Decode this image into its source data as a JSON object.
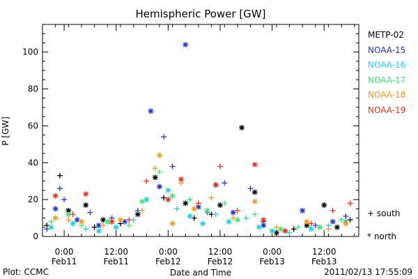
{
  "chart_data": {
    "type": "scatter",
    "title": "Hemispheric Power [GW]",
    "xlabel": "Date and Time",
    "ylabel": "P [GW]",
    "ylim": [
      0,
      115
    ],
    "y_ticks": [
      0,
      20,
      40,
      60,
      80,
      100
    ],
    "xlim": [
      "2011-02-10T19:00",
      "2011-02-13T20:00"
    ],
    "x_ticks": [
      {
        "x": "2011-02-11T00:00",
        "label_time": "0:00",
        "label_date": "Feb11"
      },
      {
        "x": "2011-02-11T12:00",
        "label_time": "12:00",
        "label_date": "Feb11"
      },
      {
        "x": "2011-02-12T00:00",
        "label_time": "0:00",
        "label_date": "Feb12"
      },
      {
        "x": "2011-02-12T12:00",
        "label_time": "12:00",
        "label_date": "Feb12"
      },
      {
        "x": "2011-02-13T00:00",
        "label_time": "0:00",
        "label_date": "Feb13"
      },
      {
        "x": "2011-02-13T12:00",
        "label_time": "12:00",
        "label_date": "Feb13"
      }
    ],
    "grid": false,
    "legend_position": "right",
    "marker_legend": [
      {
        "symbol": "+",
        "label": "south"
      },
      {
        "symbol": "*",
        "label": "north"
      }
    ],
    "series": [
      {
        "name": "METP-02",
        "color": "#000000",
        "points": [
          {
            "x": "2011-02-10T20:00",
            "y": 6,
            "m": "+"
          },
          {
            "x": "2011-02-10T23:00",
            "y": 33,
            "m": "+"
          },
          {
            "x": "2011-02-11T01:00",
            "y": 14,
            "m": "*"
          },
          {
            "x": "2011-02-11T05:00",
            "y": 17,
            "m": "*"
          },
          {
            "x": "2011-02-11T07:00",
            "y": 5,
            "m": "+"
          },
          {
            "x": "2011-02-11T09:00",
            "y": 9,
            "m": "*"
          },
          {
            "x": "2011-02-11T13:00",
            "y": 7,
            "m": "+"
          },
          {
            "x": "2011-02-11T17:00",
            "y": 12,
            "m": "*"
          },
          {
            "x": "2011-02-11T21:00",
            "y": 32,
            "m": "*"
          },
          {
            "x": "2011-02-11T23:00",
            "y": 21,
            "m": "+"
          },
          {
            "x": "2011-02-12T04:00",
            "y": 18,
            "m": "*"
          },
          {
            "x": "2011-02-12T06:00",
            "y": 10,
            "m": "+"
          },
          {
            "x": "2011-02-12T10:00",
            "y": 12,
            "m": "+"
          },
          {
            "x": "2011-02-12T12:00",
            "y": 17,
            "m": "*"
          },
          {
            "x": "2011-02-12T17:00",
            "y": 59,
            "m": "*"
          },
          {
            "x": "2011-02-12T20:00",
            "y": 24,
            "m": "*"
          },
          {
            "x": "2011-02-12T22:00",
            "y": 8,
            "m": "+"
          },
          {
            "x": "2011-02-13T01:00",
            "y": 2,
            "m": "*"
          },
          {
            "x": "2011-02-13T05:00",
            "y": 4,
            "m": "+"
          },
          {
            "x": "2011-02-13T08:00",
            "y": 6,
            "m": "*"
          },
          {
            "x": "2011-02-13T12:00",
            "y": 17,
            "m": "*"
          },
          {
            "x": "2011-02-13T15:00",
            "y": 5,
            "m": "*"
          },
          {
            "x": "2011-02-13T18:00",
            "y": 9,
            "m": "+"
          }
        ]
      },
      {
        "name": "NOAA-15",
        "color": "#2233cc",
        "points": [
          {
            "x": "2011-02-10T20:00",
            "y": 4,
            "m": "+"
          },
          {
            "x": "2011-02-10T22:00",
            "y": 15,
            "m": "*"
          },
          {
            "x": "2011-02-10T23:00",
            "y": 26,
            "m": "+"
          },
          {
            "x": "2011-02-11T00:00",
            "y": 20,
            "m": "+"
          },
          {
            "x": "2011-02-11T03:00",
            "y": 9,
            "m": "*"
          },
          {
            "x": "2011-02-11T06:00",
            "y": 13,
            "m": "+"
          },
          {
            "x": "2011-02-11T08:00",
            "y": 6,
            "m": "*"
          },
          {
            "x": "2011-02-11T11:00",
            "y": 10,
            "m": "+"
          },
          {
            "x": "2011-02-11T14:00",
            "y": 8,
            "m": "*"
          },
          {
            "x": "2011-02-11T17:00",
            "y": 14,
            "m": "+"
          },
          {
            "x": "2011-02-11T20:00",
            "y": 68,
            "m": "*"
          },
          {
            "x": "2011-02-11T22:00",
            "y": 27,
            "m": "*"
          },
          {
            "x": "2011-02-11T23:00",
            "y": 54,
            "m": "+"
          },
          {
            "x": "2011-02-12T01:00",
            "y": 38,
            "m": "+"
          },
          {
            "x": "2011-02-12T04:00",
            "y": 104,
            "m": "*"
          },
          {
            "x": "2011-02-12T07:00",
            "y": 16,
            "m": "*"
          },
          {
            "x": "2011-02-12T09:00",
            "y": 13,
            "m": "+"
          },
          {
            "x": "2011-02-12T11:00",
            "y": 28,
            "m": "*"
          },
          {
            "x": "2011-02-12T13:00",
            "y": 29,
            "m": "+"
          },
          {
            "x": "2011-02-12T15:00",
            "y": 13,
            "m": "*"
          },
          {
            "x": "2011-02-12T19:00",
            "y": 26,
            "m": "+"
          },
          {
            "x": "2011-02-12T22:00",
            "y": 6,
            "m": "*"
          },
          {
            "x": "2011-02-13T03:00",
            "y": 3,
            "m": "+"
          },
          {
            "x": "2011-02-13T07:00",
            "y": 14,
            "m": "*"
          },
          {
            "x": "2011-02-13T10:00",
            "y": 6,
            "m": "+"
          },
          {
            "x": "2011-02-13T14:00",
            "y": 8,
            "m": "*"
          },
          {
            "x": "2011-02-13T17:00",
            "y": 11,
            "m": "+"
          }
        ]
      },
      {
        "name": "NOAA-16",
        "color": "#22ccdd",
        "points": [
          {
            "x": "2011-02-10T21:00",
            "y": 5,
            "m": "*"
          },
          {
            "x": "2011-02-11T02:00",
            "y": 7,
            "m": "*"
          },
          {
            "x": "2011-02-11T05:00",
            "y": 4,
            "m": "+"
          },
          {
            "x": "2011-02-11T08:00",
            "y": 3,
            "m": "*"
          },
          {
            "x": "2011-02-11T12:00",
            "y": 5,
            "m": "*"
          },
          {
            "x": "2011-02-11T16:00",
            "y": 9,
            "m": "+"
          },
          {
            "x": "2011-02-11T19:00",
            "y": 20,
            "m": "*"
          },
          {
            "x": "2011-02-12T00:00",
            "y": 25,
            "m": "*"
          },
          {
            "x": "2011-02-12T02:00",
            "y": 15,
            "m": "+"
          },
          {
            "x": "2011-02-12T05:00",
            "y": 11,
            "m": "*"
          },
          {
            "x": "2011-02-12T08:00",
            "y": 7,
            "m": "*"
          },
          {
            "x": "2011-02-12T11:00",
            "y": 12,
            "m": "+"
          },
          {
            "x": "2011-02-12T14:00",
            "y": 8,
            "m": "*"
          },
          {
            "x": "2011-02-12T18:00",
            "y": 10,
            "m": "+"
          },
          {
            "x": "2011-02-12T21:00",
            "y": 5,
            "m": "*"
          },
          {
            "x": "2011-02-13T00:00",
            "y": 3,
            "m": "*"
          },
          {
            "x": "2011-02-13T04:00",
            "y": 2,
            "m": "+"
          },
          {
            "x": "2011-02-13T09:00",
            "y": 4,
            "m": "*"
          },
          {
            "x": "2011-02-13T13:00",
            "y": 6,
            "m": "+"
          },
          {
            "x": "2011-02-13T17:00",
            "y": 8,
            "m": "*"
          }
        ]
      },
      {
        "name": "NOAA-17",
        "color": "#44dd77",
        "points": [
          {
            "x": "2011-02-10T21:00",
            "y": 8,
            "m": "+"
          },
          {
            "x": "2011-02-11T01:00",
            "y": 12,
            "m": "*"
          },
          {
            "x": "2011-02-11T04:00",
            "y": 6,
            "m": "+"
          },
          {
            "x": "2011-02-11T10:00",
            "y": 8,
            "m": "*"
          },
          {
            "x": "2011-02-11T15:00",
            "y": 6,
            "m": "+"
          },
          {
            "x": "2011-02-11T18:00",
            "y": 19,
            "m": "*"
          },
          {
            "x": "2011-02-11T22:00",
            "y": 35,
            "m": "+"
          },
          {
            "x": "2011-02-12T01:00",
            "y": 22,
            "m": "*"
          },
          {
            "x": "2011-02-12T05:00",
            "y": 20,
            "m": "+"
          },
          {
            "x": "2011-02-12T09:00",
            "y": 14,
            "m": "*"
          },
          {
            "x": "2011-02-12T13:00",
            "y": 18,
            "m": "+"
          },
          {
            "x": "2011-02-12T16:00",
            "y": 9,
            "m": "*"
          },
          {
            "x": "2011-02-12T20:00",
            "y": 12,
            "m": "+"
          },
          {
            "x": "2011-02-13T02:00",
            "y": 4,
            "m": "*"
          },
          {
            "x": "2011-02-13T06:00",
            "y": 5,
            "m": "+"
          },
          {
            "x": "2011-02-13T11:00",
            "y": 5,
            "m": "*"
          },
          {
            "x": "2011-02-13T16:00",
            "y": 9,
            "m": "+"
          }
        ]
      },
      {
        "name": "NOAA-18",
        "color": "#ee9922",
        "points": [
          {
            "x": "2011-02-10T22:00",
            "y": 10,
            "m": "*"
          },
          {
            "x": "2011-02-11T01:00",
            "y": 9,
            "m": "+"
          },
          {
            "x": "2011-02-11T04:00",
            "y": 8,
            "m": "*"
          },
          {
            "x": "2011-02-11T09:00",
            "y": 6,
            "m": "+"
          },
          {
            "x": "2011-02-11T13:00",
            "y": 9,
            "m": "*"
          },
          {
            "x": "2011-02-11T18:00",
            "y": 14,
            "m": "+"
          },
          {
            "x": "2011-02-11T21:00",
            "y": 37,
            "m": "+"
          },
          {
            "x": "2011-02-11T22:00",
            "y": 44,
            "m": "*"
          },
          {
            "x": "2011-02-12T01:00",
            "y": 7,
            "m": "*"
          },
          {
            "x": "2011-02-12T03:00",
            "y": 29,
            "m": "+"
          },
          {
            "x": "2011-02-12T06:00",
            "y": 15,
            "m": "*"
          },
          {
            "x": "2011-02-12T10:00",
            "y": 21,
            "m": "+"
          },
          {
            "x": "2011-02-12T15:00",
            "y": 10,
            "m": "+"
          },
          {
            "x": "2011-02-12T20:00",
            "y": 19,
            "m": "*"
          },
          {
            "x": "2011-02-13T01:00",
            "y": 5,
            "m": "+"
          },
          {
            "x": "2011-02-13T08:00",
            "y": 8,
            "m": "*"
          },
          {
            "x": "2011-02-13T13:00",
            "y": 4,
            "m": "+"
          },
          {
            "x": "2011-02-13T17:00",
            "y": 7,
            "m": "*"
          }
        ]
      },
      {
        "name": "NOAA-19",
        "color": "#dd3322",
        "points": [
          {
            "x": "2011-02-10T22:00",
            "y": 22,
            "m": "*"
          },
          {
            "x": "2011-02-11T02:00",
            "y": 12,
            "m": "+"
          },
          {
            "x": "2011-02-11T05:00",
            "y": 23,
            "m": "*"
          },
          {
            "x": "2011-02-11T11:00",
            "y": 8,
            "m": "*"
          },
          {
            "x": "2011-02-11T15:00",
            "y": 9,
            "m": "+"
          },
          {
            "x": "2011-02-11T19:00",
            "y": 30,
            "m": "+"
          },
          {
            "x": "2011-02-12T00:00",
            "y": 20,
            "m": "*"
          },
          {
            "x": "2011-02-12T03:00",
            "y": 31,
            "m": "*"
          },
          {
            "x": "2011-02-12T07:00",
            "y": 18,
            "m": "+"
          },
          {
            "x": "2011-02-12T11:00",
            "y": 28,
            "m": "*"
          },
          {
            "x": "2011-02-12T12:00",
            "y": 38,
            "m": "+"
          },
          {
            "x": "2011-02-12T16:00",
            "y": 14,
            "m": "+"
          },
          {
            "x": "2011-02-12T20:00",
            "y": 39,
            "m": "*"
          },
          {
            "x": "2011-02-12T22:00",
            "y": 9,
            "m": "*"
          },
          {
            "x": "2011-02-13T03:00",
            "y": 3,
            "m": "*"
          },
          {
            "x": "2011-02-13T09:00",
            "y": 7,
            "m": "+"
          },
          {
            "x": "2011-02-13T14:00",
            "y": 14,
            "m": "+"
          },
          {
            "x": "2011-02-13T18:00",
            "y": 18,
            "m": "+"
          }
        ]
      }
    ]
  },
  "legend": {
    "south": "+ south",
    "north": "* north"
  },
  "footer": {
    "left": "Plot: CCMC",
    "right": "2011/02/13 17:55:09"
  }
}
